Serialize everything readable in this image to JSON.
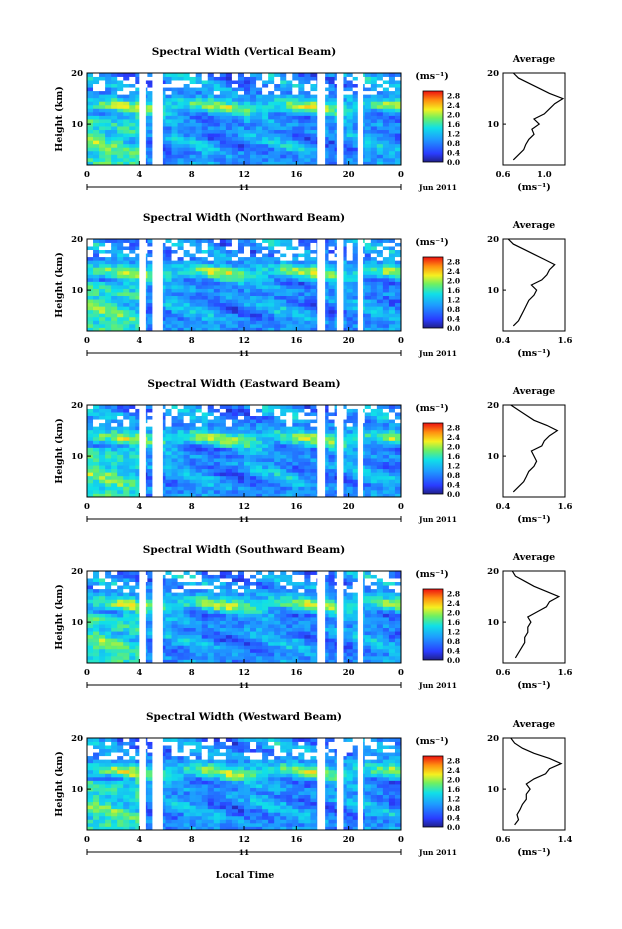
{
  "chart_data": {
    "type": "heatmap",
    "panels": [
      {
        "key": "vertical",
        "title": "Spectral Width (Vertical Beam)",
        "avg_xrange": [
          0.6,
          1.2
        ],
        "avg_ticks": [
          "0.6",
          "1.0"
        ]
      },
      {
        "key": "northward",
        "title": "Spectral Width (Northward Beam)",
        "avg_xrange": [
          0.4,
          1.6
        ],
        "avg_ticks": [
          "0.4",
          "1.6"
        ]
      },
      {
        "key": "eastward",
        "title": "Spectral Width (Eastward Beam)",
        "avg_xrange": [
          0.4,
          1.6
        ],
        "avg_ticks": [
          "0.4",
          "1.6"
        ]
      },
      {
        "key": "southward",
        "title": "Spectral Width (Southward Beam)",
        "avg_xrange": [
          0.6,
          1.6
        ],
        "avg_ticks": [
          "0.6",
          "1.6"
        ]
      },
      {
        "key": "westward",
        "title": "Spectral Width (Westward Beam)",
        "avg_xrange": [
          0.6,
          1.4
        ],
        "avg_ticks": [
          "0.6",
          "1.4"
        ]
      }
    ],
    "ylabel": "Height (km)",
    "xlabel": "Local Time",
    "x_ticks": [
      "0",
      "4",
      "8",
      "12",
      "16",
      "20",
      "0"
    ],
    "xlim": [
      0,
      24
    ],
    "y_ticks": [
      "10",
      "20"
    ],
    "ylim": [
      2,
      20
    ],
    "day_label": "11",
    "date_label": "Jun 2011",
    "colorbar_unit": "(ms⁻¹)",
    "colorbar_ticks": [
      "0.0",
      "0.4",
      "0.8",
      "1.2",
      "1.6",
      "2.0",
      "2.4",
      "2.8"
    ],
    "colorbar_range": [
      0.0,
      3.0
    ],
    "avg_title": "Average",
    "avg_xlabel": "(ms⁻¹)",
    "data_gaps_hours": [
      [
        4.0,
        4.5
      ],
      [
        5.0,
        5.8
      ],
      [
        17.6,
        18.2
      ],
      [
        19.1,
        19.6
      ],
      [
        20.7,
        21.1
      ]
    ],
    "average_profiles": {
      "heights_km": [
        3,
        4,
        5,
        6,
        7,
        8,
        9,
        10,
        11,
        12,
        13,
        14,
        15,
        16,
        17,
        18,
        19,
        20
      ],
      "vertical": [
        0.7,
        0.75,
        0.8,
        0.82,
        0.85,
        0.9,
        0.88,
        0.95,
        0.9,
        1.0,
        1.05,
        1.1,
        1.18,
        1.05,
        0.95,
        0.85,
        0.75,
        0.7
      ],
      "northward": [
        0.6,
        0.7,
        0.75,
        0.8,
        0.85,
        0.9,
        1.0,
        1.05,
        0.95,
        1.15,
        1.25,
        1.3,
        1.4,
        1.2,
        1.0,
        0.8,
        0.6,
        0.5
      ],
      "eastward": [
        0.6,
        0.7,
        0.8,
        0.85,
        0.9,
        1.0,
        1.05,
        1.0,
        0.95,
        1.15,
        1.2,
        1.3,
        1.45,
        1.25,
        1.0,
        0.85,
        0.7,
        0.55
      ],
      "southward": [
        0.8,
        0.85,
        0.9,
        0.95,
        0.95,
        1.0,
        1.0,
        1.05,
        1.0,
        1.15,
        1.3,
        1.35,
        1.5,
        1.3,
        1.1,
        0.95,
        0.8,
        0.75
      ],
      "westward": [
        0.75,
        0.8,
        0.78,
        0.82,
        0.85,
        0.9,
        0.9,
        0.95,
        0.9,
        1.0,
        1.15,
        1.2,
        1.35,
        1.2,
        1.0,
        0.85,
        0.75,
        0.7
      ]
    }
  }
}
